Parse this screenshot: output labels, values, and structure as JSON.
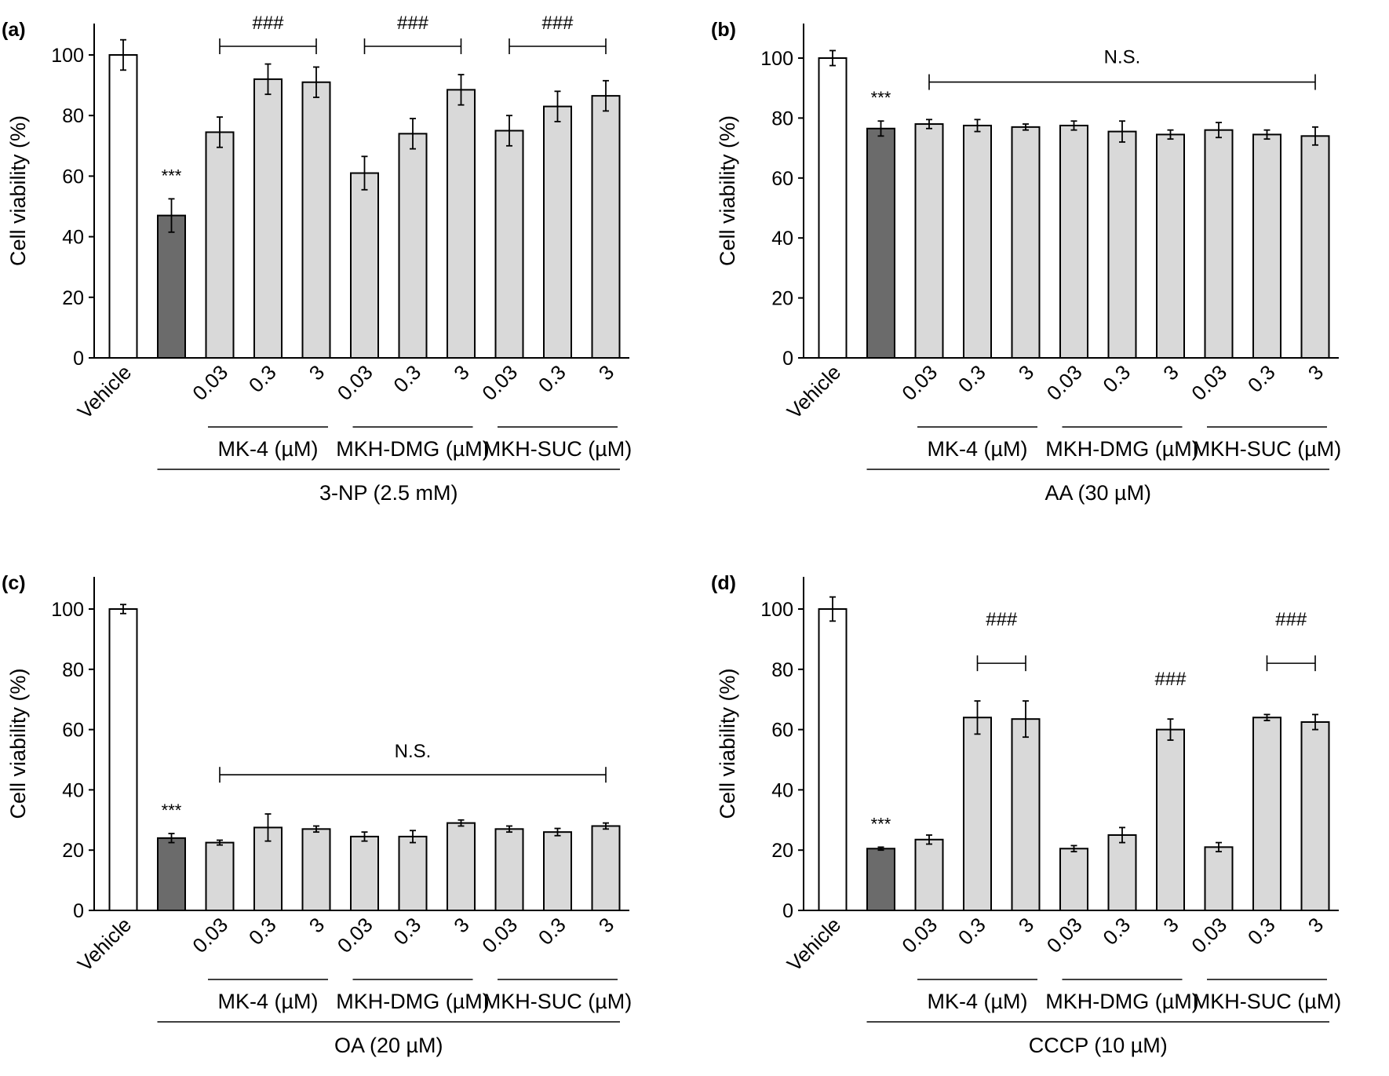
{
  "figure_colors": {
    "vehicle_bar": "#ffffff",
    "toxin_bar": "#6b6b6b",
    "treatment_bar": "#d9d9d9"
  },
  "chart_data": [
    {
      "type": "bar",
      "panel_label": "(a)",
      "ylabel": "Cell viability (%)",
      "ylim": [
        0,
        110
      ],
      "yticks": [
        "0",
        "20",
        "40",
        "60",
        "80",
        "100"
      ],
      "categories": [
        "Vehicle",
        "",
        "0.03",
        "0.3",
        "3",
        "0.03",
        "0.3",
        "3",
        "0.03",
        "0.3",
        "3"
      ],
      "values": [
        100,
        47,
        74.5,
        92,
        91,
        61,
        74,
        88.5,
        75,
        83,
        86.5
      ],
      "errors": [
        5,
        5.5,
        5,
        5,
        5,
        5.5,
        5,
        5,
        5,
        5,
        5
      ],
      "group_labels": [
        "MK-4 (µM)",
        "MKH-DMG (µM)",
        "MKH-SUC (µM)"
      ],
      "treatment_label": "3-NP (2.5 mM)",
      "toxin_significance": "***",
      "significance": [
        {
          "text": "###",
          "bracket": true,
          "from": 2,
          "to": 4
        },
        {
          "text": "###",
          "bracket": true,
          "from": 5,
          "to": 7
        },
        {
          "text": "###",
          "bracket": true,
          "from": 8,
          "to": 10
        }
      ]
    },
    {
      "type": "bar",
      "panel_label": "(b)",
      "ylabel": "Cell viability (%)",
      "ylim": [
        0,
        110
      ],
      "yticks": [
        "0",
        "20",
        "40",
        "60",
        "80",
        "100"
      ],
      "categories": [
        "Vehicle",
        "",
        "0.03",
        "0.3",
        "3",
        "0.03",
        "0.3",
        "3",
        "0.03",
        "0.3",
        "3"
      ],
      "values": [
        100,
        76.5,
        78,
        77.5,
        77,
        77.5,
        75.5,
        74.5,
        76,
        74.5,
        74
      ],
      "errors": [
        2.5,
        2.5,
        1.5,
        2,
        1,
        1.5,
        3.5,
        1.5,
        2.5,
        1.5,
        3
      ],
      "group_labels": [
        "MK-4 (µM)",
        "MKH-DMG (µM)",
        "MKH-SUC (µM)"
      ],
      "treatment_label": "AA (30 µM)",
      "toxin_significance": "***",
      "significance": [
        {
          "text": "N.S.",
          "bracket": true,
          "from": 2,
          "to": 10
        }
      ]
    },
    {
      "type": "bar",
      "panel_label": "(c)",
      "ylabel": "Cell viability (%)",
      "ylim": [
        0,
        110
      ],
      "yticks": [
        "0",
        "20",
        "40",
        "60",
        "80",
        "100"
      ],
      "categories": [
        "Vehicle",
        "",
        "0.03",
        "0.3",
        "3",
        "0.03",
        "0.3",
        "3",
        "0.03",
        "0.3",
        "3"
      ],
      "values": [
        100,
        24,
        22.5,
        27.5,
        27,
        24.5,
        24.5,
        29,
        27,
        26,
        28
      ],
      "errors": [
        1.5,
        1.5,
        0.8,
        4.5,
        1,
        1.5,
        2,
        1,
        1,
        1.2,
        1
      ],
      "group_labels": [
        "MK-4 (µM)",
        "MKH-DMG (µM)",
        "MKH-SUC (µM)"
      ],
      "treatment_label": "OA (20 µM)",
      "toxin_significance": "***",
      "significance": [
        {
          "text": "N.S.",
          "bracket": true,
          "from": 2,
          "to": 10
        }
      ]
    },
    {
      "type": "bar",
      "panel_label": "(d)",
      "ylabel": "Cell viability (%)",
      "ylim": [
        0,
        110
      ],
      "yticks": [
        "0",
        "20",
        "40",
        "60",
        "80",
        "100"
      ],
      "categories": [
        "Vehicle",
        "",
        "0.03",
        "0.3",
        "3",
        "0.03",
        "0.3",
        "3",
        "0.03",
        "0.3",
        "3"
      ],
      "values": [
        100,
        20.5,
        23.5,
        64,
        63.5,
        20.5,
        25,
        60,
        21,
        64,
        62.5
      ],
      "errors": [
        4,
        0.5,
        1.5,
        5.5,
        6,
        1,
        2.5,
        3.5,
        1.5,
        1,
        2.5
      ],
      "group_labels": [
        "MK-4 (µM)",
        "MKH-DMG (µM)",
        "MKH-SUC (µM)"
      ],
      "treatment_label": "CCCP (10 µM)",
      "toxin_significance": "***",
      "significance": [
        {
          "text": "###",
          "bracket": true,
          "from": 3,
          "to": 4
        },
        {
          "text": "###",
          "bracket": false,
          "from": 7,
          "to": 7
        },
        {
          "text": "###",
          "bracket": true,
          "from": 9,
          "to": 10
        }
      ]
    }
  ]
}
